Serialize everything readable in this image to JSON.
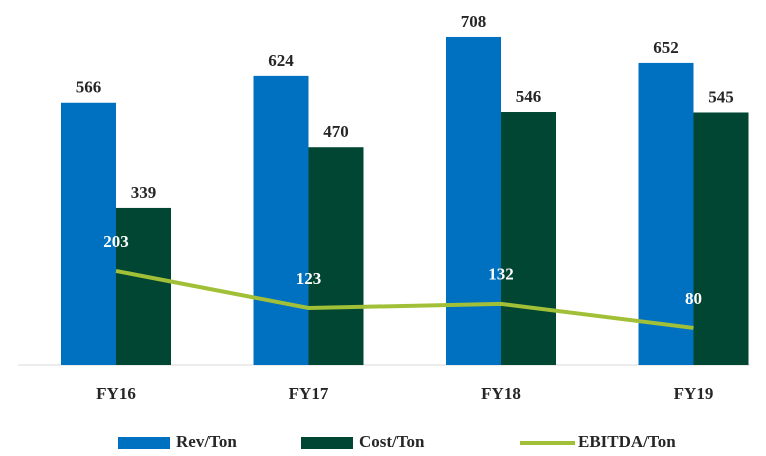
{
  "chart_data": {
    "type": "bar-line",
    "categories": [
      "FY16",
      "FY17",
      "FY18",
      "FY19"
    ],
    "series": [
      {
        "name": "Rev/Ton",
        "type": "bar",
        "color": "#0070c0",
        "values": [
          566,
          624,
          708,
          652
        ]
      },
      {
        "name": "Cost/Ton",
        "type": "bar",
        "color": "#004632",
        "values": [
          339,
          470,
          546,
          545
        ]
      },
      {
        "name": "EBITDA/Ton",
        "type": "line",
        "color": "#a2c037",
        "values": [
          203,
          123,
          132,
          80
        ]
      }
    ],
    "ylim": [
      0,
      720
    ],
    "legend": "bottom"
  }
}
